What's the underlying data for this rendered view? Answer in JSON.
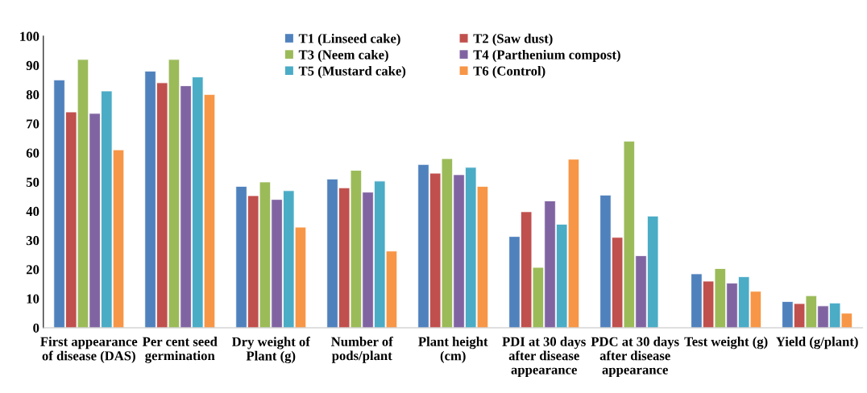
{
  "chart_data": {
    "type": "bar",
    "categories": [
      "First appearance\nof disease (DAS)",
      "Per cent seed\ngermination",
      "Dry weight of\nPlant (g)",
      "Number of\npods/plant",
      "Plant height\n(cm)",
      "PDI at 30 days\nafter disease\nappearance",
      "PDC at 30 days\nafter disease\nappearance",
      "Test weight (g)",
      "Yield (g/plant)"
    ],
    "series": [
      {
        "name": "T1 (Linseed cake)",
        "color": "#4f81bd",
        "values": [
          85,
          88,
          48.5,
          51,
          56,
          31.3,
          45.5,
          18.5,
          9
        ]
      },
      {
        "name": "T2 (Saw dust)",
        "color": "#c0504d",
        "values": [
          74,
          84,
          45.3,
          48,
          53,
          39.8,
          31,
          16,
          8.3
        ]
      },
      {
        "name": "T3 (Neem cake)",
        "color": "#9bbb59",
        "values": [
          92,
          92,
          50,
          54,
          58,
          20.7,
          64,
          20.3,
          11
        ]
      },
      {
        "name": "T4 (Parthenium compost)",
        "color": "#8064a2",
        "values": [
          73.5,
          83,
          44,
          46.5,
          52.5,
          43.5,
          24.7,
          15.3,
          7.5
        ]
      },
      {
        "name": "T5 (Mustard cake)",
        "color": "#4bacc6",
        "values": [
          81.2,
          86,
          47,
          50.3,
          55,
          35.5,
          38.3,
          17.5,
          8.5
        ]
      },
      {
        "name": "T6 (Control)",
        "color": "#f79646",
        "values": [
          61,
          80,
          34.5,
          26.3,
          48.5,
          57.8,
          null,
          12.5,
          5
        ]
      }
    ],
    "ylim": [
      0,
      100
    ],
    "yticks": [
      0,
      10,
      20,
      30,
      40,
      50,
      60,
      70,
      80,
      90,
      100
    ],
    "grid": false,
    "legend": "top"
  }
}
